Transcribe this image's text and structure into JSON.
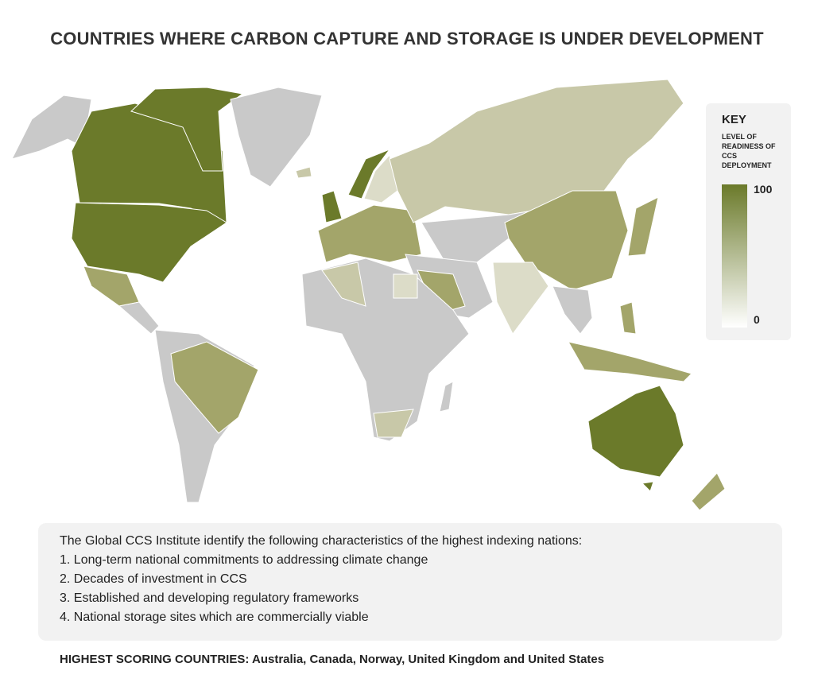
{
  "title": "COUNTRIES WHERE CARBON CAPTURE AND STORAGE IS UNDER DEVELOPMENT",
  "key": {
    "title": "KEY",
    "subtitle": "LEVEL OF READINESS OF CCS DEPLOYMENT",
    "max": 100,
    "min": 0
  },
  "notes": {
    "intro": "The Global CCS Institute identify the following characteristics of the highest indexing nations:",
    "items": [
      "1. Long-term national commitments to addressing climate change",
      "2. Decades of investment in CCS",
      "3. Established and developing regulatory frameworks",
      "4. National storage sites which are commercially viable"
    ]
  },
  "footer": {
    "label": "HIGHEST SCORING COUNTRIES:",
    "countries": "Australia, Canada, Norway, United Kingdom and United States"
  }
}
